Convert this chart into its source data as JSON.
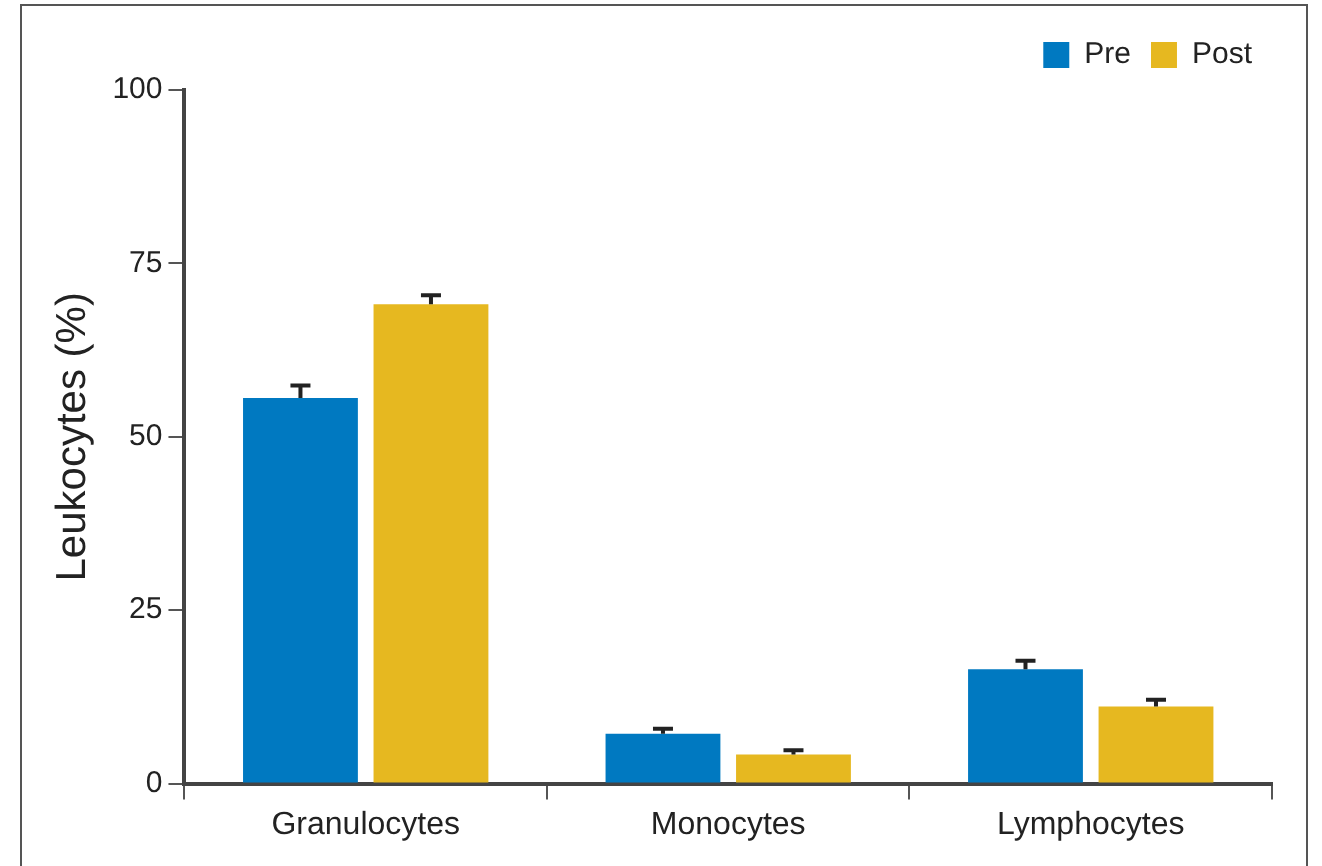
{
  "chart_data": {
    "type": "bar",
    "ylabel": "Leukocytes (%)",
    "categories": [
      "Granulocytes",
      "Monocytes",
      "Lymphocytes"
    ],
    "series": [
      {
        "name": "Pre",
        "color": "#0079c1",
        "values": [
          55.6,
          7.2,
          16.5
        ],
        "errors": [
          [
            55.6,
            57.4
          ],
          [
            7.2,
            7.9
          ],
          [
            16.5,
            17.7
          ]
        ]
      },
      {
        "name": "Post",
        "color": "#e6b820",
        "values": [
          69.1,
          4.2,
          11.1
        ],
        "errors": [
          [
            69.1,
            70.4
          ],
          [
            4.2,
            4.8
          ],
          [
            11.1,
            12.1
          ]
        ]
      }
    ],
    "ylim": [
      0,
      100
    ],
    "yticks": [
      0,
      25,
      50,
      75,
      100
    ],
    "grid": false,
    "legend": "top right"
  }
}
